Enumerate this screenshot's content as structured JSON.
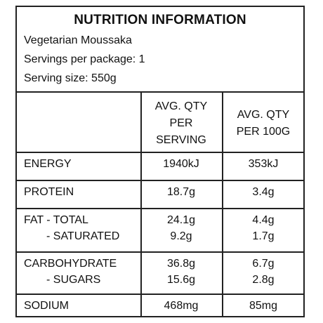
{
  "title": "NUTRITION INFORMATION",
  "product": "Vegetarian Moussaka",
  "servings": "Servings per package: 1",
  "serving_size": "Serving size: 550g",
  "headers": {
    "per_serving_line1": "AVG. QTY",
    "per_serving_line2": "PER",
    "per_serving_line3": "SERVING",
    "per_100g_line1": "AVG. QTY",
    "per_100g_line2": "PER 100G"
  },
  "rows": {
    "energy": {
      "label": "ENERGY",
      "serving": "1940kJ",
      "per100": "353kJ"
    },
    "protein": {
      "label": "PROTEIN",
      "serving": "18.7g",
      "per100": "3.4g"
    },
    "fat_total": {
      "label": "FAT - TOTAL",
      "serving": "24.1g",
      "per100": "4.4g"
    },
    "fat_saturated": {
      "label": "- SATURATED",
      "serving": "9.2g",
      "per100": "1.7g"
    },
    "carbohydrate": {
      "label": "CARBOHYDRATE",
      "serving": "36.8g",
      "per100": "6.7g"
    },
    "sugars": {
      "label": "- SUGARS",
      "serving": "15.6g",
      "per100": "2.8g"
    },
    "sodium": {
      "label": "SODIUM",
      "serving": "468mg",
      "per100": "85mg"
    }
  }
}
